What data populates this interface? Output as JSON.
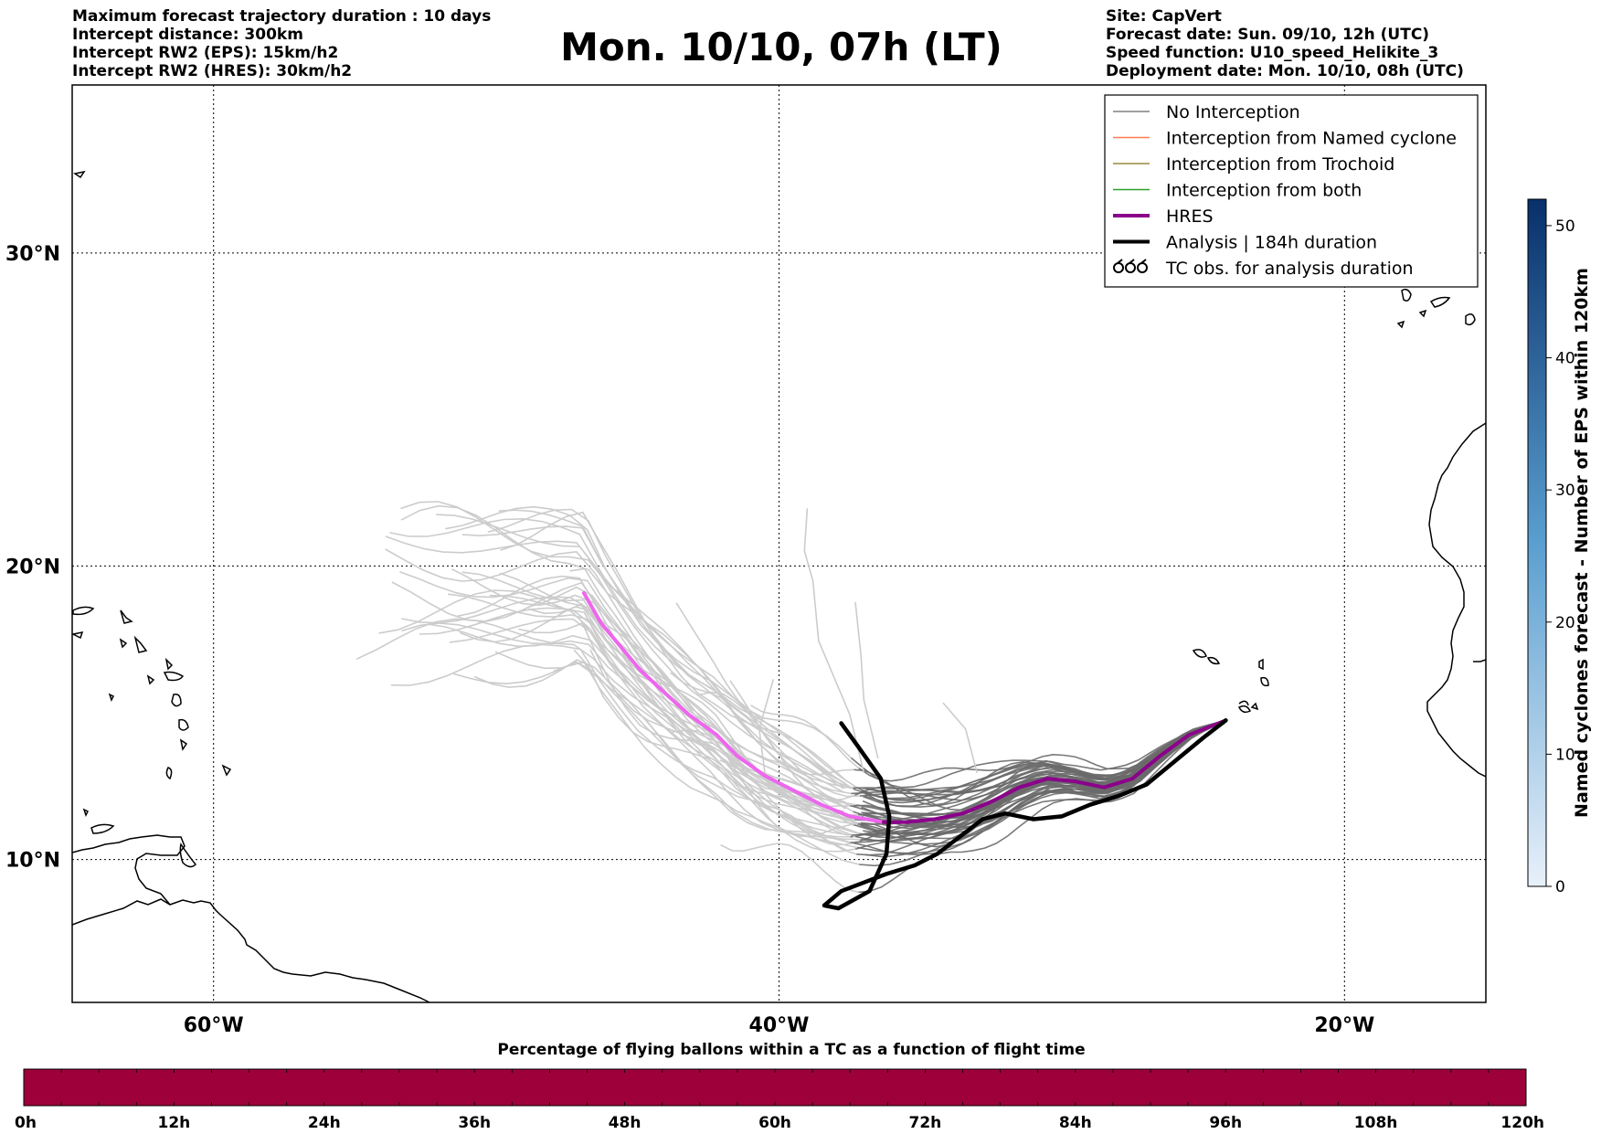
{
  "header": {
    "title": "Mon. 10/10, 07h (LT)",
    "left_lines": [
      "Maximum forecast trajectory duration : 10 days",
      "Intercept distance: 300km",
      "Intercept RW2 (EPS):  15km/h2",
      "Intercept RW2 (HRES): 30km/h2"
    ],
    "right_lines": [
      "Site: CapVert",
      "Forecast date: Sun. 09/10, 12h (UTC)",
      "Speed function: U10_speed_Helikite_3",
      "Deployment date: Mon. 10/10, 08h (UTC)"
    ]
  },
  "map": {
    "lon_range": [
      -65,
      -15
    ],
    "lat_range": [
      5,
      35
    ],
    "lon_ticks": [
      {
        "value": -60,
        "label": "60°W"
      },
      {
        "value": -40,
        "label": "40°W"
      },
      {
        "value": -20,
        "label": "20°W"
      }
    ],
    "lat_ticks": [
      {
        "value": 10,
        "label": "10°N"
      },
      {
        "value": 20,
        "label": "20°N"
      },
      {
        "value": 30,
        "label": "30°N"
      }
    ],
    "grid": true,
    "colors": {
      "no_interception": "#808080",
      "named_cyclone": "#ff7f50",
      "trochoid": "#9a8a3a",
      "both": "#2ca02c",
      "hres": "#8b008b",
      "hres_early": "#ee66ee",
      "analysis": "#000000",
      "ensemble_early": "#cccccc",
      "ensemble_late": "#6a6a6a"
    }
  },
  "legend": {
    "position": "top-right",
    "items": [
      {
        "label": "No Interception",
        "style": "thin",
        "color": "#808080"
      },
      {
        "label": "Interception from Named cyclone",
        "style": "thin",
        "color": "#ff7f50"
      },
      {
        "label": "Interception from Trochoid",
        "style": "thin",
        "color": "#9a8a3a"
      },
      {
        "label": "Interception from both",
        "style": "thin",
        "color": "#2ca02c"
      },
      {
        "label": "HRES",
        "style": "thick",
        "color": "#8b008b"
      },
      {
        "label": "Analysis | 184h duration",
        "style": "thick",
        "color": "#000000"
      },
      {
        "label": "TC obs. for analysis duration",
        "style": "symbol",
        "color": "#000000"
      }
    ]
  },
  "chart_data": {
    "type": "line",
    "start_point": {
      "lon": -24.2,
      "lat": 14.8
    },
    "hres": [
      [
        -24.2,
        14.8
      ],
      [
        -25.5,
        14.3
      ],
      [
        -26.5,
        13.6
      ],
      [
        -27.5,
        12.8
      ],
      [
        -28.5,
        12.5
      ],
      [
        -29.5,
        12.7
      ],
      [
        -30.5,
        12.8
      ],
      [
        -31.5,
        12.5
      ],
      [
        -32.5,
        12.0
      ],
      [
        -33.5,
        11.6
      ],
      [
        -34.5,
        11.4
      ],
      [
        -35.5,
        11.3
      ],
      [
        -36.3,
        11.3
      ],
      [
        -37.5,
        11.5
      ],
      [
        -38.5,
        11.9
      ],
      [
        -39.5,
        12.4
      ],
      [
        -40.5,
        12.9
      ],
      [
        -41.5,
        13.6
      ],
      [
        -42.2,
        14.3
      ],
      [
        -43.2,
        15.0
      ],
      [
        -44.0,
        15.7
      ],
      [
        -44.9,
        16.5
      ],
      [
        -45.6,
        17.3
      ],
      [
        -46.3,
        18.1
      ],
      [
        -46.9,
        19.1
      ]
    ],
    "analysis": [
      [
        -24.2,
        14.8
      ],
      [
        -25.0,
        14.2
      ],
      [
        -26.0,
        13.4
      ],
      [
        -27.0,
        12.6
      ],
      [
        -28.0,
        12.2
      ],
      [
        -29.0,
        11.9
      ],
      [
        -30.0,
        11.5
      ],
      [
        -31.0,
        11.4
      ],
      [
        -32.0,
        11.6
      ],
      [
        -32.8,
        11.4
      ],
      [
        -33.6,
        10.8
      ],
      [
        -34.4,
        10.2
      ],
      [
        -35.2,
        9.8
      ],
      [
        -36.2,
        9.5
      ],
      [
        -37.0,
        9.2
      ],
      [
        -37.8,
        8.9
      ],
      [
        -38.4,
        8.4
      ],
      [
        -38.4,
        8.4
      ],
      [
        -37.9,
        8.3
      ],
      [
        -36.8,
        8.9
      ],
      [
        -36.2,
        10.2
      ],
      [
        -36.1,
        11.5
      ],
      [
        -36.4,
        12.8
      ],
      [
        -37.2,
        13.9
      ],
      [
        -37.8,
        14.7
      ]
    ],
    "ensemble_members": 50,
    "colorbar_flight_time": {
      "title": "Percentage of flying ballons within a TC as a function of flight time",
      "ticks": [
        "0h",
        "12h",
        "24h",
        "36h",
        "48h",
        "60h",
        "72h",
        "84h",
        "96h",
        "108h",
        "120h"
      ],
      "fill_color": "#9e003a"
    },
    "colorbar_cyclones": {
      "label": "Named cyclones forecast - Number of EPS within 120km",
      "ticks": [
        0,
        10,
        20,
        30,
        40,
        50
      ],
      "range": [
        0,
        52
      ],
      "color_low": "#e8f0fa",
      "color_high": "#08306b"
    }
  }
}
